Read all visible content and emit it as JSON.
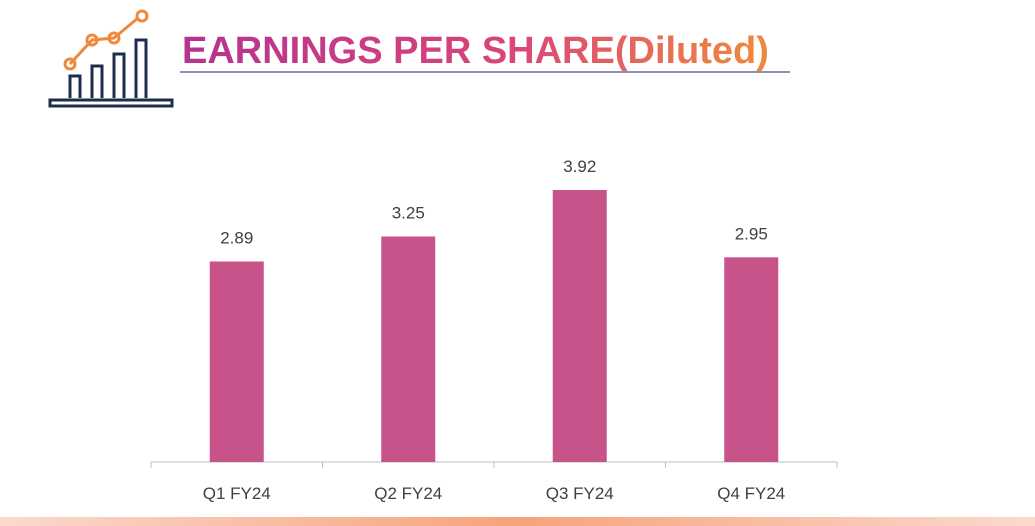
{
  "chart_data": {
    "type": "bar",
    "title": "EARNINGS PER SHARE(Diluted)",
    "categories": [
      "Q1 FY24",
      "Q2 FY24",
      "Q3 FY24",
      "Q4 FY24"
    ],
    "values": [
      2.89,
      3.25,
      3.92,
      2.95
    ],
    "color": "#c7538a"
  }
}
